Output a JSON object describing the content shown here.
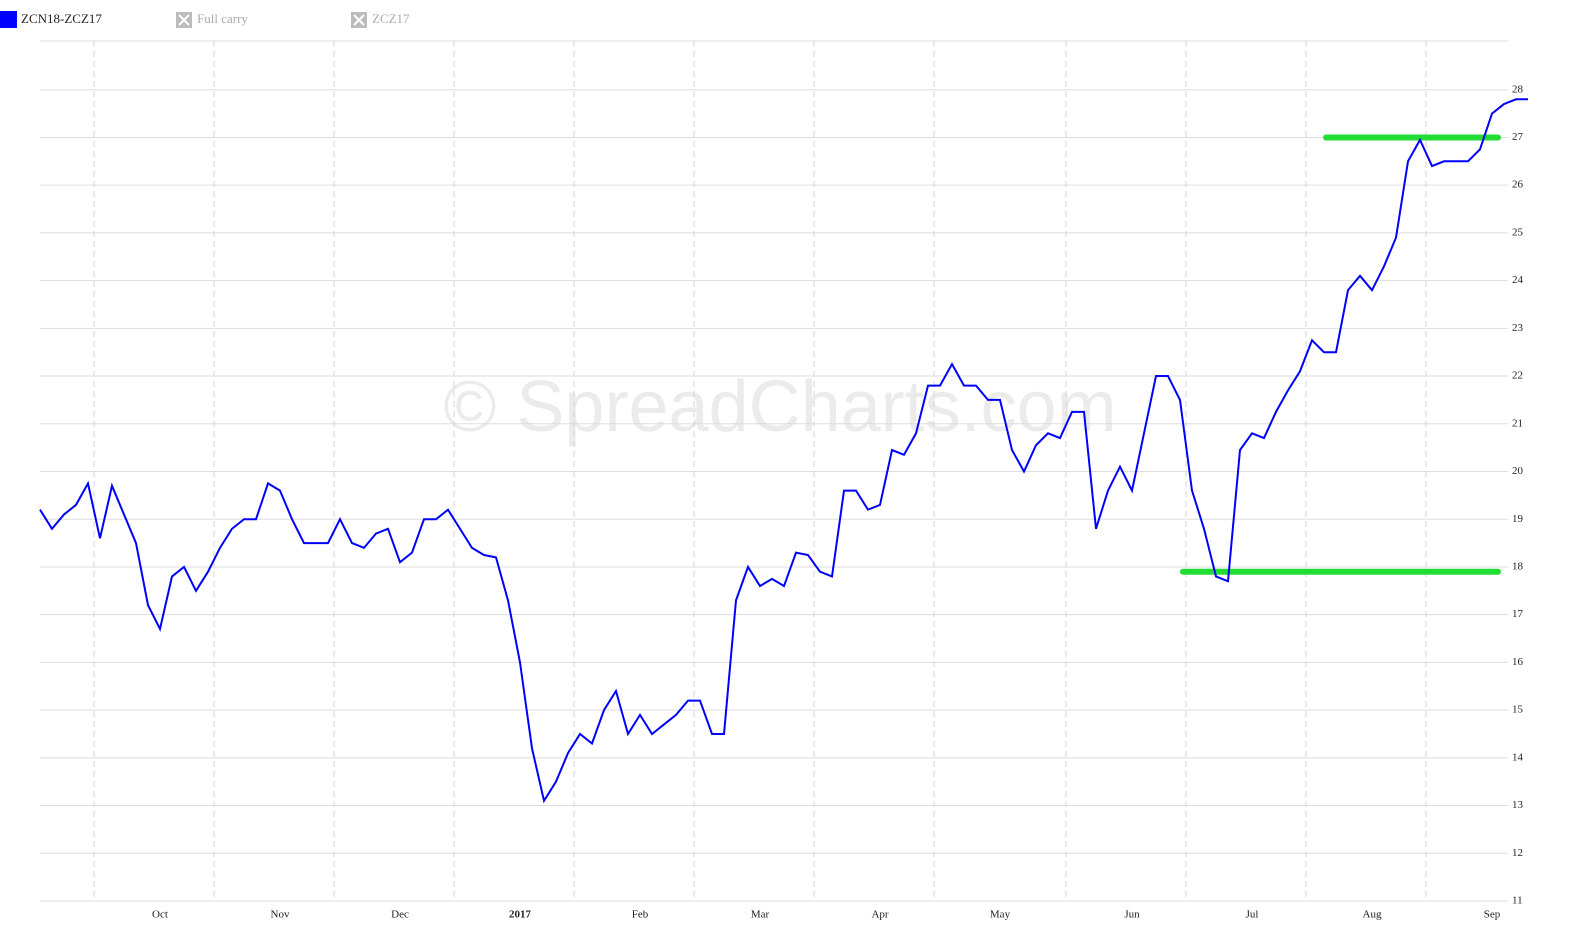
{
  "chart_data": {
    "type": "line",
    "watermark": "© SpreadCharts.com",
    "categories": [
      null,
      null,
      null,
      null,
      null,
      null,
      null,
      null,
      null,
      null,
      "Oct",
      null,
      null,
      null,
      null,
      null,
      null,
      null,
      null,
      null,
      "Nov",
      null,
      null,
      null,
      null,
      null,
      null,
      null,
      null,
      null,
      "Dec",
      null,
      null,
      null,
      null,
      null,
      null,
      null,
      null,
      null,
      "2017",
      null,
      null,
      null,
      null,
      null,
      null,
      null,
      null,
      null,
      "Feb",
      null,
      null,
      null,
      null,
      null,
      null,
      null,
      null,
      null,
      "Mar",
      null,
      null,
      null,
      null,
      null,
      null,
      null,
      null,
      null,
      "Apr",
      null,
      null,
      null,
      null,
      null,
      null,
      null,
      null,
      null,
      "May",
      null,
      null,
      null,
      null,
      null,
      null,
      null,
      null,
      null,
      null,
      "Jun",
      null,
      null,
      null,
      null,
      null,
      null,
      null,
      null,
      null,
      "Jul",
      null,
      null,
      null,
      null,
      null,
      null,
      null,
      null,
      null,
      "Aug",
      null,
      null,
      null,
      null,
      null,
      null,
      null,
      null,
      null,
      "Sep",
      null,
      null,
      null
    ],
    "series": [
      {
        "name": "ZCN18-ZCZ17",
        "color": "#0000ff",
        "values": [
          19.2,
          18.8,
          19.1,
          19.3,
          19.75,
          18.6,
          19.7,
          19.1,
          18.5,
          17.2,
          16.7,
          17.8,
          18.0,
          17.5,
          17.9,
          18.4,
          18.8,
          19.0,
          19.0,
          19.75,
          19.6,
          19.0,
          18.5,
          18.5,
          18.5,
          19.0,
          18.5,
          18.4,
          18.7,
          18.8,
          18.1,
          18.3,
          19.0,
          19.0,
          19.2,
          18.8,
          18.4,
          18.25,
          18.2,
          17.3,
          16.0,
          14.2,
          13.1,
          13.5,
          14.1,
          14.5,
          14.3,
          15.0,
          15.4,
          14.5,
          14.9,
          14.5,
          14.7,
          14.9,
          15.2,
          15.2,
          14.5,
          14.5,
          17.3,
          18.0,
          17.6,
          17.75,
          17.6,
          18.3,
          18.25,
          17.9,
          17.8,
          19.6,
          19.6,
          19.2,
          19.3,
          20.45,
          20.35,
          20.8,
          21.8,
          21.8,
          22.25,
          21.8,
          21.8,
          21.5,
          21.5,
          20.45,
          20.0,
          20.55,
          20.8,
          20.7,
          21.25,
          21.25,
          18.8,
          19.6,
          20.1,
          19.6,
          20.8,
          22.0,
          22.0,
          21.5,
          19.6,
          18.8,
          17.8,
          17.7,
          20.45,
          20.8,
          20.7,
          21.25,
          21.7,
          22.1,
          22.75,
          22.5,
          22.5,
          23.8,
          24.1,
          23.8,
          24.3,
          24.9,
          26.5,
          26.95,
          26.4,
          26.5,
          26.5,
          26.5,
          26.75,
          27.5,
          27.7,
          27.8,
          27.8
        ]
      }
    ],
    "hidden_series": [
      {
        "name": "Full carry"
      },
      {
        "name": "ZCZ17"
      }
    ],
    "levels": [
      {
        "value": 27,
        "color": "#22dd33"
      },
      {
        "value": 17.9,
        "color": "#22dd33"
      }
    ],
    "ylim": [
      11,
      29
    ],
    "yticks": [
      11,
      12,
      13,
      14,
      15,
      16,
      17,
      18,
      19,
      20,
      21,
      22,
      23,
      24,
      25,
      26,
      27,
      28
    ],
    "grid": true
  }
}
